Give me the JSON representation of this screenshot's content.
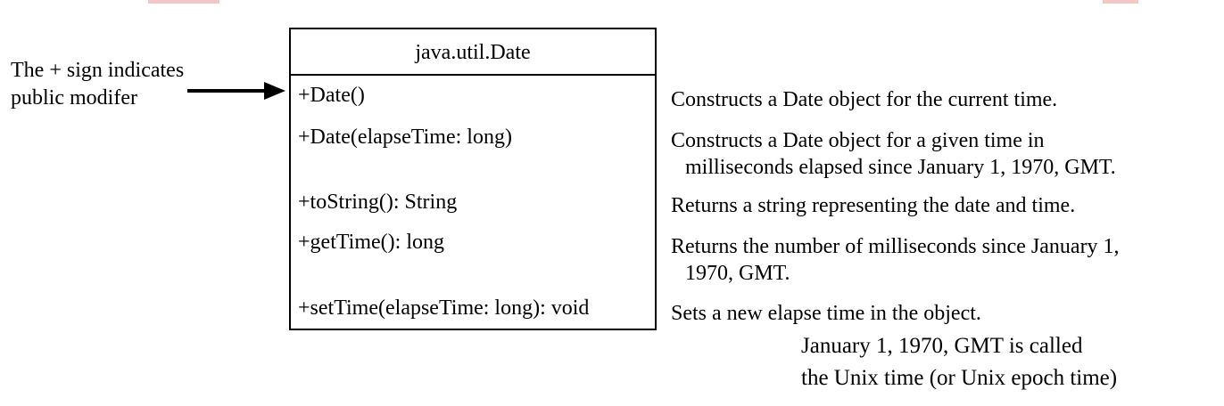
{
  "diagram": {
    "note_left": {
      "line1": "The + sign indicates",
      "line2": "public modifer"
    },
    "class_box": {
      "name": "java.util.Date",
      "members": [
        "+Date()",
        "+Date(elapseTime: long)",
        "+toString(): String",
        "+getTime(): long",
        "+setTime(elapseTime: long): void"
      ]
    },
    "descriptions": [
      {
        "line1": "Constructs a Date object for the current time."
      },
      {
        "line1": "Constructs a Date object for a given time in",
        "line2": "milliseconds elapsed since January 1, 1970, GMT."
      },
      {
        "line1": "Returns a string representing the date and time."
      },
      {
        "line1": "Returns the number of milliseconds since January 1,",
        "line2": "1970, GMT."
      },
      {
        "line1": "Sets a new elapse time in the object."
      }
    ],
    "note_bottom": {
      "line1": "January 1, 1970, GMT is called",
      "line2": "the Unix time (or Unix epoch time)"
    },
    "colors": {
      "line": "#000000",
      "text": "#000000",
      "top_accent": "#f3c6c8"
    }
  }
}
